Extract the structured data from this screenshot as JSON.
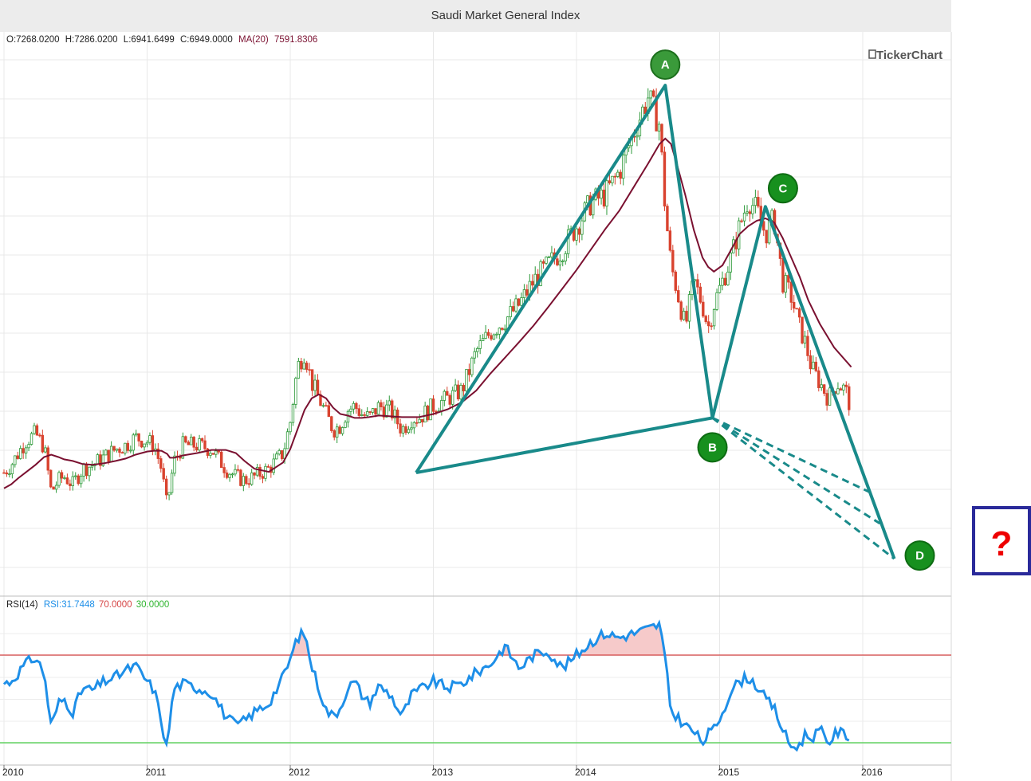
{
  "chart_title": "Saudi Market General Index",
  "brand": "TickerChart",
  "ohlc": {
    "open": "O:7268.0200",
    "high": "H:7286.0200",
    "low": "L:6941.6499",
    "close": "C:6949.0000",
    "ma_label": "MA(20)",
    "ma_value": "7591.8306"
  },
  "rsi_legend": {
    "name": "RSI(14)",
    "value": "RSI:31.7448",
    "upper": "70.0000",
    "lower": "30.0000"
  },
  "colors": {
    "candle_up": "#2e9a3a",
    "candle_down": "#d9432f",
    "ma": "#7a1030",
    "pattern": "#198a8a",
    "rsi": "#1e8fe8",
    "rsi_upper": "#d64545",
    "rsi_lower": "#44cc44",
    "rsi_fill": "#f6caca",
    "point": "#17901e",
    "point_a": "#3a9a3a",
    "box": "#2a2a9a",
    "qmark": "#ee0000"
  },
  "pattern_points": [
    {
      "label": "A"
    },
    {
      "label": "B"
    },
    {
      "label": "C"
    },
    {
      "label": "D"
    }
  ],
  "question_mark": "?",
  "chart_data": {
    "type": "line",
    "title": "Saudi Market General Index",
    "x_ticks": [
      "2010",
      "2011",
      "2012",
      "2013",
      "2014",
      "2015",
      "2016"
    ],
    "x_range": [
      2010.0,
      2016.5
    ],
    "price": {
      "name": "Saudi Market General Index",
      "x": [
        2010.0,
        2010.05,
        2010.1,
        2010.15,
        2010.22,
        2010.28,
        2010.33,
        2010.38,
        2010.42,
        2010.48,
        2010.55,
        2010.62,
        2010.7,
        2010.78,
        2010.85,
        2010.92,
        2011.0,
        2011.05,
        2011.1,
        2011.14,
        2011.16,
        2011.19,
        2011.25,
        2011.35,
        2011.45,
        2011.55,
        2011.62,
        2011.68,
        2011.75,
        2011.85,
        2011.95,
        2012.0,
        2012.05,
        2012.1,
        2012.15,
        2012.2,
        2012.25,
        2012.3,
        2012.35,
        2012.4,
        2012.45,
        2012.5,
        2012.55,
        2012.62,
        2012.7,
        2012.78,
        2012.85,
        2012.9,
        2013.0,
        2013.1,
        2013.2,
        2013.3,
        2013.4,
        2013.5,
        2013.6,
        2013.7,
        2013.8,
        2013.9,
        2014.0,
        2014.1,
        2014.2,
        2014.3,
        2014.4,
        2014.5,
        2014.58,
        2014.62,
        2014.66,
        2014.7,
        2014.76,
        2014.82,
        2014.88,
        2014.92,
        2014.96,
        2015.02,
        2015.08,
        2015.14,
        2015.2,
        2015.26,
        2015.32,
        2015.38,
        2015.44,
        2015.5,
        2015.56,
        2015.6,
        2015.64,
        2015.7,
        2015.76,
        2015.82,
        2015.88,
        2015.92
      ],
      "close": [
        6150,
        6250,
        6400,
        6550,
        6650,
        6480,
        5900,
        6050,
        6100,
        6000,
        6200,
        6250,
        6350,
        6450,
        6500,
        6600,
        6550,
        6500,
        6200,
        5700,
        6000,
        6300,
        6500,
        6500,
        6450,
        6200,
        6100,
        6050,
        6100,
        6200,
        6400,
        6800,
        7500,
        7700,
        7300,
        7100,
        6900,
        6700,
        6750,
        6950,
        7000,
        6900,
        6850,
        7000,
        6950,
        6700,
        6850,
        6850,
        7000,
        7100,
        7200,
        7700,
        7950,
        8100,
        8300,
        8600,
        8800,
        9000,
        9300,
        9600,
        9700,
        10000,
        10500,
        10950,
        10600,
        9500,
        8800,
        8500,
        8000,
        8600,
        8300,
        8000,
        8300,
        8600,
        8900,
        9300,
        9650,
        9500,
        9200,
        9400,
        8600,
        8400,
        8000,
        7800,
        7500,
        7300,
        7100,
        7300,
        7200,
        6950
      ],
      "ma20": [
        5950,
        6000,
        6080,
        6150,
        6250,
        6350,
        6380,
        6350,
        6320,
        6300,
        6260,
        6250,
        6270,
        6300,
        6330,
        6380,
        6420,
        6430,
        6430,
        6390,
        6340,
        6340,
        6370,
        6400,
        6440,
        6440,
        6400,
        6300,
        6200,
        6160,
        6280,
        6450,
        6700,
        6950,
        7100,
        7150,
        7100,
        6980,
        6900,
        6880,
        6850,
        6850,
        6860,
        6880,
        6870,
        6860,
        6860,
        6860,
        6900,
        6960,
        7050,
        7200,
        7420,
        7620,
        7820,
        8030,
        8260,
        8500,
        8740,
        9000,
        9260,
        9500,
        9800,
        10100,
        10350,
        10420,
        10350,
        10100,
        9700,
        9250,
        8900,
        8780,
        8720,
        8800,
        9000,
        9200,
        9300,
        9370,
        9400,
        9350,
        9150,
        8900,
        8650,
        8350,
        8050,
        7750,
        7500
      ],
      "ma20_x": [
        2010.0,
        2010.05,
        2010.1,
        2010.15,
        2010.22,
        2010.28,
        2010.33,
        2010.38,
        2010.42,
        2010.48,
        2010.55,
        2010.62,
        2010.7,
        2010.78,
        2010.85,
        2010.92,
        2011.0,
        2011.05,
        2011.1,
        2011.14,
        2011.16,
        2011.19,
        2011.25,
        2011.35,
        2011.45,
        2011.55,
        2011.62,
        2011.68,
        2011.75,
        2011.85,
        2011.95,
        2012.0,
        2012.05,
        2012.1,
        2012.15,
        2012.2,
        2012.25,
        2012.3,
        2012.35,
        2012.4,
        2012.45,
        2012.5,
        2012.55,
        2012.62,
        2012.7,
        2012.78,
        2012.85,
        2012.9,
        2013.0,
        2013.1,
        2013.2,
        2013.3,
        2013.4,
        2013.5,
        2013.6,
        2013.7,
        2013.8,
        2013.9,
        2014.0,
        2014.1,
        2014.2,
        2014.3,
        2014.4,
        2014.5,
        2014.58,
        2014.62,
        2014.66,
        2014.7,
        2014.76,
        2014.82,
        2014.88,
        2014.92,
        2014.96,
        2015.02,
        2015.08,
        2015.14,
        2015.2,
        2015.26,
        2015.32,
        2015.38,
        2015.44,
        2015.5,
        2015.56,
        2015.62,
        2015.7,
        2015.8,
        2015.92
      ]
    },
    "pattern": {
      "X": {
        "x": 2012.88,
        "y": 6150
      },
      "A": {
        "x": 2014.62,
        "y": 11100
      },
      "B": {
        "x": 2014.95,
        "y": 6850
      },
      "C": {
        "x": 2015.32,
        "y": 9550
      },
      "D": {
        "x": 2016.22,
        "y": 5050
      },
      "projections": [
        {
          "x": 2016.05,
          "y": 5900
        },
        {
          "x": 2016.12,
          "y": 5500
        },
        {
          "x": 2016.22,
          "y": 5050
        }
      ]
    },
    "rsi": {
      "name": "RSI(14)",
      "upper": 70,
      "lower": 30,
      "x": [
        2010.0,
        2010.05,
        2010.1,
        2010.15,
        2010.22,
        2010.28,
        2010.33,
        2010.38,
        2010.42,
        2010.48,
        2010.55,
        2010.62,
        2010.7,
        2010.78,
        2010.85,
        2010.92,
        2011.0,
        2011.05,
        2011.1,
        2011.14,
        2011.16,
        2011.19,
        2011.25,
        2011.35,
        2011.45,
        2011.55,
        2011.62,
        2011.68,
        2011.75,
        2011.85,
        2011.95,
        2012.0,
        2012.05,
        2012.1,
        2012.15,
        2012.2,
        2012.25,
        2012.3,
        2012.35,
        2012.4,
        2012.45,
        2012.5,
        2012.55,
        2012.62,
        2012.7,
        2012.78,
        2012.85,
        2012.9,
        2013.0,
        2013.1,
        2013.2,
        2013.3,
        2013.4,
        2013.5,
        2013.6,
        2013.7,
        2013.8,
        2013.9,
        2014.0,
        2014.1,
        2014.2,
        2014.3,
        2014.4,
        2014.5,
        2014.58,
        2014.62,
        2014.66,
        2014.7,
        2014.76,
        2014.82,
        2014.88,
        2014.92,
        2014.96,
        2015.02,
        2015.08,
        2015.14,
        2015.2,
        2015.26,
        2015.32,
        2015.38,
        2015.44,
        2015.5,
        2015.56,
        2015.6,
        2015.64,
        2015.7,
        2015.76,
        2015.82,
        2015.88,
        2015.92
      ],
      "values": [
        57,
        58,
        62,
        66,
        69,
        62,
        37,
        48,
        50,
        44,
        55,
        54,
        58,
        60,
        63,
        65,
        58,
        54,
        40,
        26,
        42,
        55,
        57,
        55,
        53,
        42,
        38,
        40,
        44,
        48,
        60,
        68,
        78,
        80,
        65,
        55,
        45,
        42,
        46,
        55,
        58,
        52,
        48,
        56,
        52,
        42,
        52,
        54,
        58,
        55,
        57,
        62,
        66,
        74,
        64,
        70,
        72,
        64,
        70,
        76,
        80,
        78,
        80,
        82,
        84,
        68,
        44,
        42,
        38,
        35,
        30,
        34,
        36,
        44,
        54,
        58,
        60,
        56,
        50,
        46,
        36,
        28,
        29,
        34,
        32,
        36,
        30,
        35,
        34,
        32
      ]
    }
  }
}
